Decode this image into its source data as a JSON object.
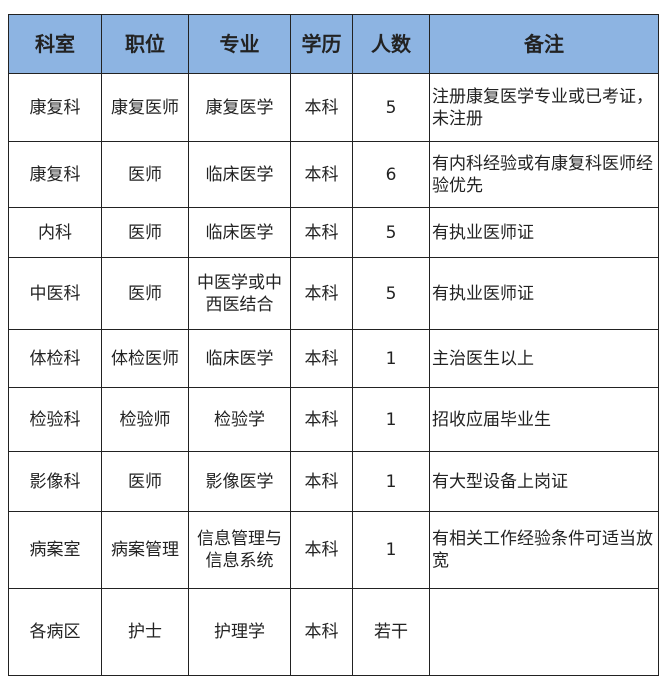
{
  "colors": {
    "header_bg": "#8db4e2",
    "border": "#222222"
  },
  "headers": [
    "科室",
    "职位",
    "专业",
    "学历",
    "人数",
    "备注"
  ],
  "rows": [
    [
      "康复科",
      "康复医师",
      "康复医学",
      "本科",
      "5",
      "注册康复医学专业或已考证，未注册"
    ],
    [
      "康复科",
      "医师",
      "临床医学",
      "本科",
      "6",
      "有内科经验或有康复科医师经验优先"
    ],
    [
      "内科",
      "医师",
      "临床医学",
      "本科",
      "5",
      "有执业医师证"
    ],
    [
      "中医科",
      "医师",
      "中医学或中西医结合",
      "本科",
      "5",
      "有执业医师证"
    ],
    [
      "体检科",
      "体检医师",
      "临床医学",
      "本科",
      "1",
      "主治医生以上"
    ],
    [
      "检验科",
      "检验师",
      "检验学",
      "本科",
      "1",
      "招收应届毕业生"
    ],
    [
      "影像科",
      "医师",
      "影像医学",
      "本科",
      "1",
      "有大型设备上岗证"
    ],
    [
      "病案室",
      "病案管理",
      "信息管理与信息系统",
      "本科",
      "1",
      "有相关工作经验条件可适当放宽"
    ],
    [
      "各病区",
      "护士",
      "护理学",
      "本科",
      "若干",
      ""
    ]
  ]
}
